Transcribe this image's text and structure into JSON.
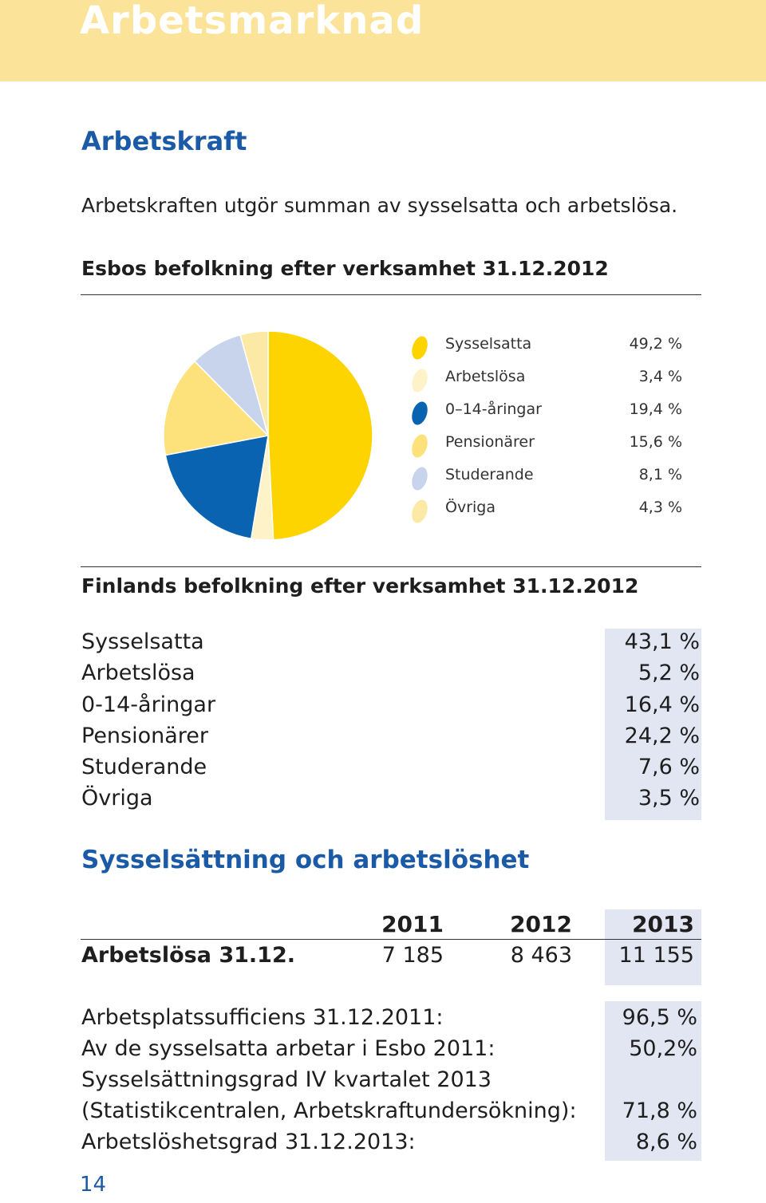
{
  "banner": {
    "title": "Arbetsmarknad"
  },
  "arbetskraft": {
    "heading": "Arbetskraft",
    "text": "Arbetskraften utgör summan av sysselsatta och arbetslösa."
  },
  "esbo": {
    "heading": "Esbos befolkning efter verksamhet 31.12.2012"
  },
  "chart_data": {
    "type": "pie",
    "title": "",
    "slices": [
      {
        "label": "Sysselsatta",
        "value": 49.2,
        "display": "49,2 %",
        "color": "#fdd300"
      },
      {
        "label": "Arbetslösa",
        "value": 3.4,
        "display": "3,4 %",
        "color": "#fdf2c8"
      },
      {
        "label": "0–14-åringar",
        "value": 19.4,
        "display": "19,4 %",
        "color": "#0a63b0"
      },
      {
        "label": "Pensionärer",
        "value": 15.6,
        "display": "15,6 %",
        "color": "#fde17a"
      },
      {
        "label": "Studerande",
        "value": 8.1,
        "display": "8,1 %",
        "color": "#c8d4ec"
      },
      {
        "label": "Övriga",
        "value": 4.3,
        "display": "4,3 %",
        "color": "#fde9a6"
      }
    ],
    "legend_position": "right"
  },
  "finland": {
    "heading": "Finlands befolkning efter verksamhet 31.12.2012",
    "rows": [
      {
        "label": "Sysselsatta",
        "value": "43,1 %"
      },
      {
        "label": "Arbetslösa",
        "value": "5,2 %"
      },
      {
        "label": "0-14-åringar",
        "value": "16,4 %"
      },
      {
        "label": "Pensionärer",
        "value": "24,2 %"
      },
      {
        "label": "Studerande",
        "value": "7,6 %"
      },
      {
        "label": "Övriga",
        "value": "3,5 %"
      }
    ]
  },
  "employment": {
    "heading": "Sysselsättning och arbetslöshet",
    "years": [
      "2011",
      "2012",
      "2013"
    ],
    "row_label": "Arbetslösa 31.12.",
    "values": [
      "7 185",
      "8 463",
      "11 155"
    ]
  },
  "stats": [
    {
      "label": "Arbetsplatssufficiens 31.12.2011:",
      "value": "96,5 %"
    },
    {
      "label": "Av de sysselsatta arbetar i Esbo 2011:",
      "value": "50,2%"
    },
    {
      "label": "Sysselsättningsgrad IV kvartalet 2013",
      "value": ""
    },
    {
      "label": "(Statistikcentralen, Arbetskraftundersökning):",
      "value": "71,8 %"
    },
    {
      "label": "Arbetslöshetsgrad 31.12.2013:",
      "value": "8,6 %"
    }
  ],
  "page_number": "14"
}
